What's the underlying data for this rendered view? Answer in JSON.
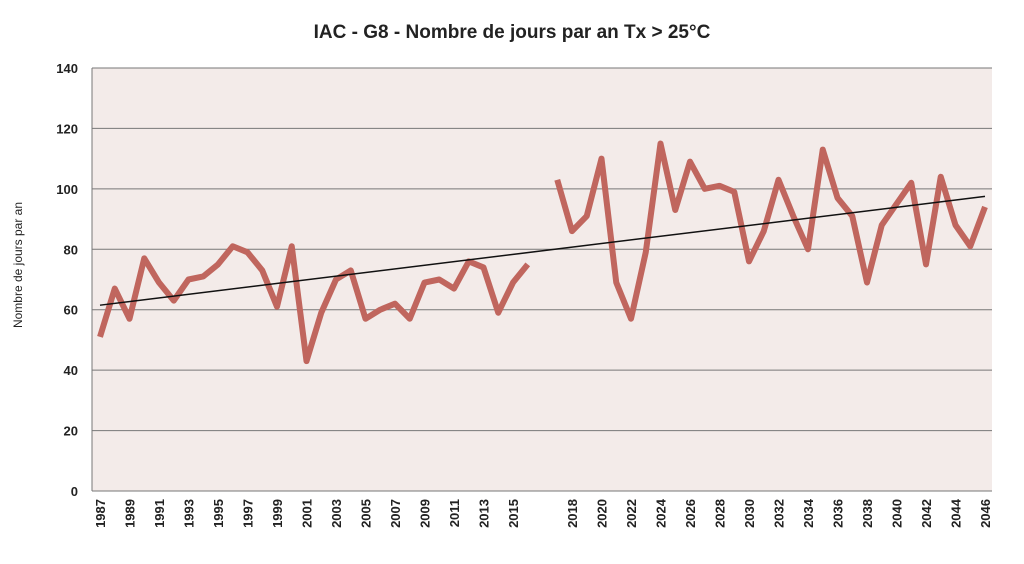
{
  "chart_data": {
    "type": "line",
    "title": "IAC - G8 - Nombre de jours par an Tx > 25°C",
    "y_label": "Nombre de jours par an",
    "categories": [
      "1987",
      null,
      "1989",
      null,
      "1991",
      null,
      "1993",
      null,
      "1995",
      null,
      "1997",
      null,
      "1999",
      null,
      "2001",
      null,
      "2003",
      null,
      "2005",
      null,
      "2007",
      null,
      "2009",
      null,
      "2011",
      null,
      "2013",
      null,
      "2015",
      null,
      null,
      null,
      "2018",
      null,
      "2020",
      null,
      "2022",
      null,
      "2024",
      null,
      "2026",
      null,
      "2028",
      null,
      "2030",
      null,
      "2032",
      null,
      "2034",
      null,
      "2036",
      null,
      "2038",
      null,
      "2040",
      null,
      "2042",
      null,
      "2044",
      null,
      "2046"
    ],
    "series": [
      {
        "name": null,
        "color": "#c0665e",
        "values": [
          51,
          67,
          57,
          77,
          69,
          63,
          70,
          71,
          75,
          81,
          79,
          73,
          61,
          81,
          43,
          59,
          70,
          73,
          57,
          60,
          62,
          57,
          69,
          70,
          67,
          76,
          74,
          59,
          69,
          75,
          null,
          103,
          86,
          91,
          110,
          69,
          57,
          79,
          115,
          93,
          109,
          100,
          101,
          99,
          76,
          86,
          103,
          91,
          80,
          113,
          97,
          91,
          69,
          88,
          95,
          102,
          75,
          104,
          88,
          81,
          94
        ]
      }
    ],
    "trendline": {
      "start": 61.5,
      "end": 97.5,
      "color": "#111111"
    },
    "ylim": [
      0,
      140
    ],
    "yticks": [
      0,
      20,
      40,
      60,
      80,
      100,
      120,
      140
    ],
    "grid": true,
    "background": "#f3ebe9"
  }
}
